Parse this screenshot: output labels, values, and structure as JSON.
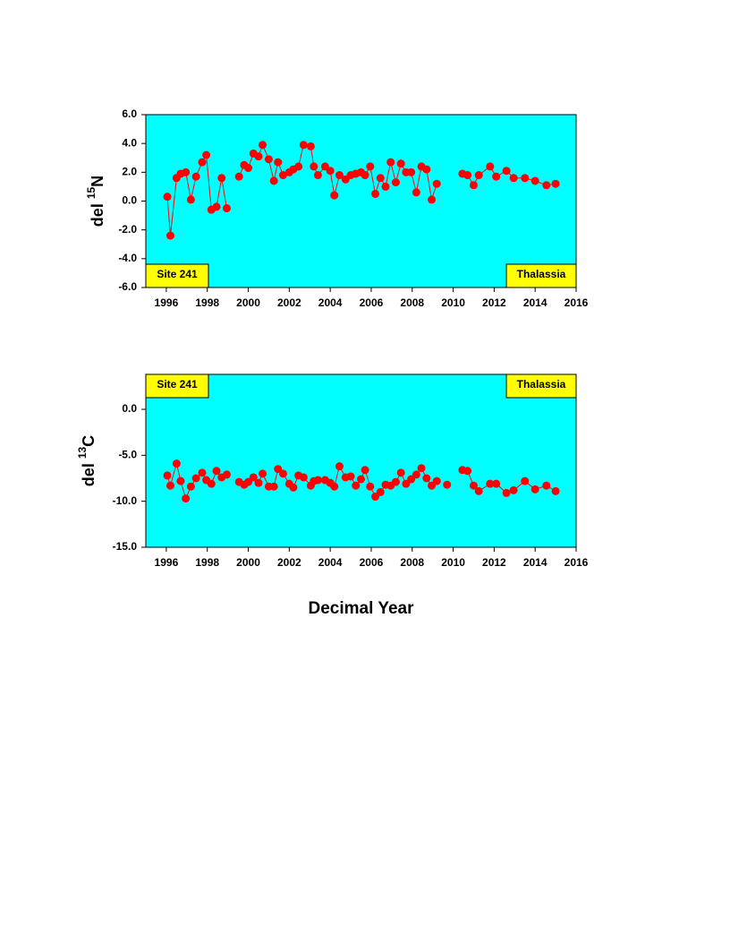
{
  "chart_data": [
    {
      "type": "line",
      "ylabel": {
        "prefix": "del",
        "superscript": "15",
        "element": "N"
      },
      "annotations": [
        "Site 241",
        "Thalassia"
      ],
      "annotation_position": "bottom",
      "plot_background": "#00ffff",
      "annotation_color": "#ffff00",
      "xlim": [
        1995,
        2016
      ],
      "xticks": [
        1996,
        1998,
        2000,
        2002,
        2004,
        2006,
        2008,
        2010,
        2012,
        2014,
        2016
      ],
      "ylim": [
        -6,
        6
      ],
      "yticks": [
        {
          "value": 6,
          "label": "6.0"
        },
        {
          "value": 4,
          "label": "4.0"
        },
        {
          "value": 2,
          "label": "2.0"
        },
        {
          "value": 0,
          "label": "0.0"
        },
        {
          "value": -2,
          "label": "-2.0"
        },
        {
          "value": -4,
          "label": "-4.0"
        },
        {
          "value": -6,
          "label": "-6.0"
        }
      ],
      "series": [
        {
          "color": "#ff0000",
          "x": [
            1996.05,
            1996.2,
            1996.5,
            1996.7,
            1996.95,
            1997.2,
            1997.45,
            1997.75,
            1997.95,
            1998.2,
            1998.45,
            1998.7,
            1998.95,
            null,
            1999.55,
            1999.8,
            2000.0,
            2000.25,
            2000.5,
            2000.7,
            2001.0,
            2001.25,
            2001.45,
            2001.7,
            2002.0,
            2002.2,
            2002.45,
            2002.7,
            2003.05,
            2003.2,
            2003.4,
            2003.75,
            2004.0,
            2004.2,
            2004.45,
            2004.75,
            2005.0,
            2005.25,
            2005.5,
            2005.7,
            2005.95,
            2006.2,
            2006.45,
            2006.7,
            2006.95,
            2007.2,
            2007.45,
            2007.7,
            2007.95,
            2008.2,
            2008.45,
            2008.7,
            2008.95,
            2009.2,
            null,
            2010.45,
            2010.7,
            2011.0,
            2011.25,
            2011.8,
            2012.1,
            2012.6,
            2012.95,
            2013.5,
            2014.0,
            2014.55,
            2015.0
          ],
          "values": [
            0.3,
            -2.4,
            1.6,
            1.9,
            2.0,
            0.1,
            1.7,
            2.7,
            3.2,
            -0.6,
            -0.4,
            1.6,
            -0.5,
            null,
            1.7,
            2.5,
            2.3,
            3.3,
            3.1,
            3.9,
            2.9,
            1.4,
            2.7,
            1.8,
            2.0,
            2.2,
            2.4,
            3.9,
            3.8,
            2.4,
            1.8,
            2.4,
            2.1,
            0.4,
            1.8,
            1.5,
            1.8,
            1.9,
            2.0,
            1.8,
            2.4,
            0.5,
            1.6,
            1.0,
            2.7,
            1.3,
            2.6,
            2.0,
            2.0,
            0.6,
            2.4,
            2.2,
            0.1,
            1.2,
            null,
            1.9,
            1.8,
            1.1,
            1.8,
            2.4,
            1.7,
            2.1,
            1.6,
            1.6,
            1.4,
            1.1,
            1.2
          ]
        }
      ]
    },
    {
      "type": "line",
      "ylabel": {
        "prefix": "del",
        "superscript": "13",
        "element": "C"
      },
      "annotations": [
        "Site 241",
        "Thalassia"
      ],
      "annotation_position": "top",
      "plot_background": "#00ffff",
      "annotation_color": "#ffff00",
      "xlabel": "Decimal Year",
      "xlim": [
        1995,
        2016
      ],
      "xticks": [
        1996,
        1998,
        2000,
        2002,
        2004,
        2006,
        2008,
        2010,
        2012,
        2014,
        2016
      ],
      "ylim": [
        -15,
        3.8
      ],
      "yticks": [
        {
          "value": 0,
          "label": "0.0"
        },
        {
          "value": -5,
          "label": "-5.0"
        },
        {
          "value": -10,
          "label": "-10.0"
        },
        {
          "value": -15,
          "label": "-15.0"
        }
      ],
      "series": [
        {
          "color": "#ff0000",
          "x": [
            1996.05,
            1996.2,
            1996.5,
            1996.7,
            1996.95,
            1997.2,
            1997.45,
            1997.75,
            1997.95,
            1998.2,
            1998.45,
            1998.7,
            1998.95,
            null,
            1999.55,
            1999.8,
            2000.0,
            2000.25,
            2000.5,
            2000.7,
            2001.0,
            2001.25,
            2001.45,
            2001.7,
            2002.0,
            2002.2,
            2002.45,
            2002.7,
            2003.05,
            2003.2,
            2003.4,
            2003.75,
            2004.0,
            2004.2,
            2004.45,
            2004.75,
            2005.0,
            2005.25,
            2005.5,
            2005.7,
            2005.95,
            2006.2,
            2006.45,
            2006.7,
            2006.95,
            2007.2,
            2007.45,
            2007.7,
            2007.95,
            2008.2,
            2008.45,
            2008.7,
            2008.95,
            2009.2,
            null,
            2009.7,
            null,
            2010.45,
            2010.7,
            2011.0,
            2011.25,
            2011.8,
            2012.1,
            2012.6,
            2012.95,
            2013.5,
            2014.0,
            2014.55,
            2015.0
          ],
          "values": [
            -7.2,
            -8.3,
            -5.9,
            -7.8,
            -9.7,
            -8.4,
            -7.5,
            -6.9,
            -7.7,
            -8.1,
            -6.7,
            -7.4,
            -7.1,
            null,
            -7.9,
            -8.2,
            -7.9,
            -7.4,
            -8.0,
            -7.0,
            -8.4,
            -8.4,
            -6.5,
            -7.0,
            -8.1,
            -8.5,
            -7.2,
            -7.4,
            -8.3,
            -7.8,
            -7.7,
            -7.7,
            -8.0,
            -8.4,
            -6.2,
            -7.4,
            -7.3,
            -8.3,
            -7.6,
            -6.6,
            -8.4,
            -9.5,
            -9.0,
            -8.2,
            -8.3,
            -7.9,
            -6.9,
            -8.1,
            -7.6,
            -7.1,
            -6.4,
            -7.5,
            -8.3,
            -7.8,
            null,
            -8.2,
            null,
            -6.6,
            -6.7,
            -8.3,
            -8.9,
            -8.1,
            -8.1,
            -9.1,
            -8.8,
            -7.8,
            -8.7,
            -8.3,
            -8.9
          ]
        }
      ]
    }
  ]
}
